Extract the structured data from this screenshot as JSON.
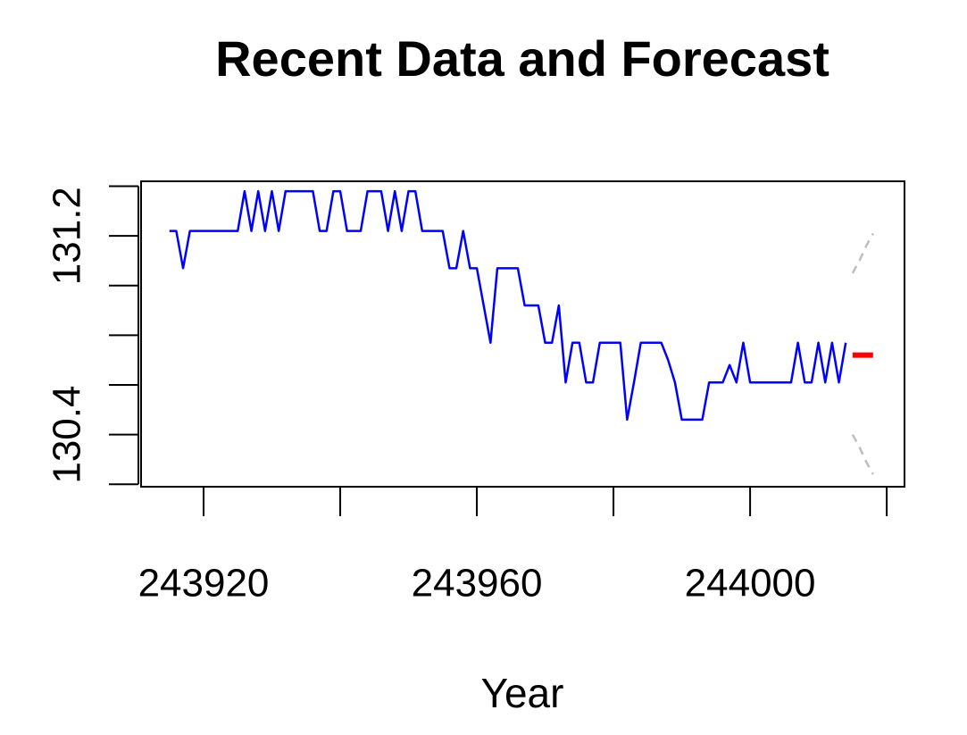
{
  "chart_data": {
    "type": "line",
    "title": "Recent Data and Forecast",
    "x_label": "Year",
    "xlim": [
      243910.85,
      244022.6
    ],
    "ylim": [
      130.19,
      131.42
    ],
    "xticks": [
      243920,
      {
        "value": 243940,
        "label": null
      },
      243960,
      {
        "value": 243980,
        "label": null
      },
      244000,
      {
        "value": 244020,
        "label": null
      }
    ],
    "yticks": [
      {
        "value": 130.2,
        "label": null
      },
      130.4,
      {
        "value": 130.6,
        "label": null
      },
      {
        "value": 130.8,
        "label": null
      },
      {
        "value": 131.0,
        "label": null
      },
      131.2,
      {
        "value": 131.4,
        "label": null
      }
    ],
    "grid": false,
    "series": [
      {
        "color": "#0000ff",
        "line_style": "solid",
        "x": [
          243915,
          243916,
          243917,
          243918,
          243919,
          243920,
          243921,
          243922,
          243923,
          243924,
          243925,
          243926,
          243927,
          243928,
          243929,
          243930,
          243931,
          243932,
          243933,
          243934,
          243935,
          243936,
          243937,
          243938,
          243939,
          243940,
          243941,
          243942,
          243943,
          243944,
          243945,
          243946,
          243947,
          243948,
          243949,
          243950,
          243951,
          243952,
          243953,
          243954,
          243955,
          243956,
          243957,
          243958,
          243959,
          243960,
          243961,
          243962,
          243963,
          243964,
          243965,
          243966,
          243967,
          243968,
          243969,
          243970,
          243971,
          243972,
          243973,
          243974,
          243975,
          243976,
          243977,
          243978,
          243979,
          243980,
          243981,
          243982,
          243983,
          243984,
          243985,
          243986,
          243987,
          243988,
          243989,
          243990,
          243991,
          243992,
          243993,
          243994,
          243995,
          243996,
          243997,
          243998,
          243999,
          244000,
          244001,
          244002,
          244003,
          244004,
          244005,
          244006,
          244007,
          244008,
          244009,
          244010,
          244011,
          244012,
          244013,
          244014
        ],
        "values": [
          131.22,
          131.22,
          131.07,
          131.22,
          131.22,
          131.22,
          131.22,
          131.22,
          131.22,
          131.22,
          131.22,
          131.38,
          131.22,
          131.38,
          131.22,
          131.38,
          131.22,
          131.38,
          131.38,
          131.38,
          131.38,
          131.38,
          131.22,
          131.22,
          131.38,
          131.38,
          131.22,
          131.22,
          131.22,
          131.38,
          131.38,
          131.38,
          131.22,
          131.38,
          131.22,
          131.38,
          131.38,
          131.22,
          131.22,
          131.22,
          131.22,
          131.07,
          131.07,
          131.22,
          131.07,
          131.07,
          130.92,
          130.77,
          131.07,
          131.07,
          131.07,
          131.07,
          130.92,
          130.92,
          130.92,
          130.77,
          130.77,
          130.92,
          130.61,
          130.77,
          130.77,
          130.61,
          130.61,
          130.77,
          130.77,
          130.77,
          130.77,
          130.46,
          130.61,
          130.77,
          130.77,
          130.77,
          130.77,
          130.7,
          130.61,
          130.46,
          130.46,
          130.46,
          130.46,
          130.61,
          130.61,
          130.61,
          130.68,
          130.61,
          130.77,
          130.61,
          130.61,
          130.61,
          130.61,
          130.61,
          130.61,
          130.61,
          130.77,
          130.61,
          130.61,
          130.77,
          130.61,
          130.77,
          130.61,
          130.77
        ]
      },
      {
        "color": "#ff0000",
        "line_style": "bold",
        "x": [
          244015,
          244016,
          244017,
          244018
        ],
        "values": [
          130.72,
          130.72,
          130.72,
          130.72
        ]
      },
      {
        "color": "#bebebe",
        "line_style": "dashed",
        "x": [
          244015,
          244016,
          244017,
          244018
        ],
        "values": [
          131.05,
          131.1,
          131.16,
          131.21
        ]
      },
      {
        "color": "#bebebe",
        "line_style": "dashed",
        "x": [
          244015,
          244016,
          244017,
          244018
        ],
        "values": [
          130.4,
          130.35,
          130.29,
          130.24
        ]
      }
    ]
  }
}
